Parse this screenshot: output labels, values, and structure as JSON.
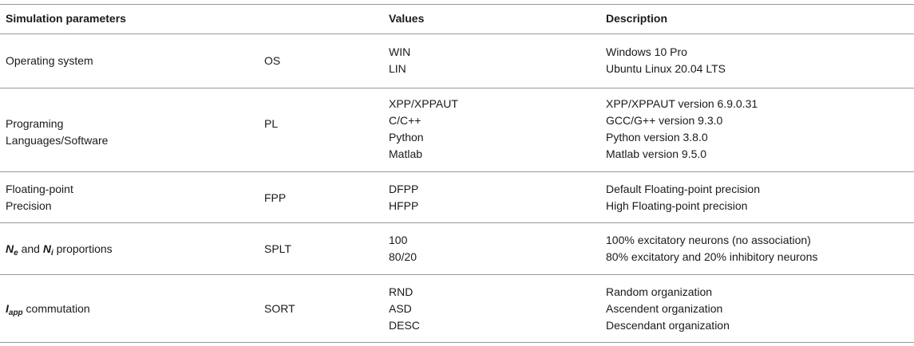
{
  "header": {
    "col_parameters": "Simulation parameters",
    "col_values": "Values",
    "col_description": "Description"
  },
  "rows": [
    {
      "parameter": [
        "Operating system"
      ],
      "abbreviation": "OS",
      "values": [
        "WIN",
        "LIN"
      ],
      "descriptions": [
        "Windows 10 Pro",
        "Ubuntu Linux 20.04 LTS"
      ]
    },
    {
      "parameter": [
        "Programing",
        "Languages/Software"
      ],
      "abbreviation": "PL",
      "values": [
        "XPP/XPPAUT",
        "C/C++",
        "Python",
        "Matlab"
      ],
      "descriptions": [
        "XPP/XPPAUT version 6.9.0.31",
        "GCC/G++ version 9.3.0",
        "Python version 3.8.0",
        "Matlab version 9.5.0"
      ]
    },
    {
      "parameter": [
        "Floating-point",
        "Precision"
      ],
      "abbreviation": "FPP",
      "values": [
        "DFPP",
        "HFPP"
      ],
      "descriptions": [
        "Default Floating-point precision",
        "High Floating-point precision"
      ]
    },
    {
      "parameter_parts": {
        "ne_base": "N",
        "ne_sub": "e",
        "conj": " and ",
        "ni_base": "N",
        "ni_sub": "i",
        "tail": " proportions"
      },
      "abbreviation": "SPLT",
      "values": [
        "100",
        "80/20"
      ],
      "descriptions": [
        "100% excitatory neurons (no association)",
        "80% excitatory and 20% inhibitory neurons"
      ]
    },
    {
      "parameter_parts": {
        "i_base": "I",
        "i_sub": "app",
        "tail": " commutation"
      },
      "abbreviation": "SORT",
      "values": [
        "RND",
        "ASD",
        "DESC"
      ],
      "descriptions": [
        "Random organization",
        "Ascendent organization",
        "Descendant organization"
      ]
    }
  ]
}
